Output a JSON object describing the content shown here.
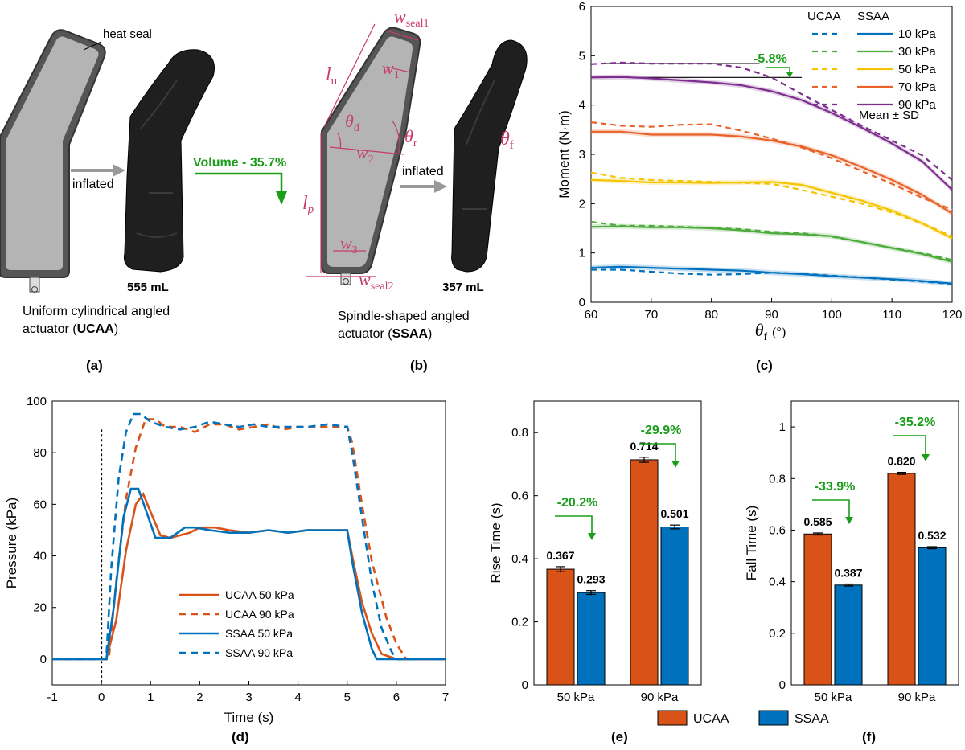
{
  "panels": {
    "a": {
      "tag": "(a)",
      "heat_seal_label": "heat seal",
      "inflated_label": "inflated",
      "volume_label": "555 mL",
      "caption_line1": "Uniform cylindrical angled",
      "caption_line2_pre": "actuator (",
      "caption_line2_bold": "UCAA",
      "caption_line2_post": ")"
    },
    "b": {
      "tag": "(b)",
      "volume_change": "Volume - 35.7%",
      "inflated_label": "inflated",
      "volume_label": "357 mL",
      "caption_line1": "Spindle-shaped angled",
      "caption_line2_pre": "actuator (",
      "caption_line2_bold": "SSAA",
      "caption_line2_post": ")",
      "dims": {
        "w_seal1": "w",
        "w_seal1_sub": "seal1",
        "w1": "w",
        "w1_sub": "1",
        "lu": "l",
        "lu_sub": "u",
        "theta_d": "θ",
        "theta_d_sub": "d",
        "theta_r": "θ",
        "theta_r_sub": "r",
        "w2": "w",
        "w2_sub": "2",
        "lp": "l",
        "lp_sub": "p",
        "w3": "w",
        "w3_sub": "3",
        "w_seal2": "w",
        "w_seal2_sub": "seal2",
        "theta_f": "θ",
        "theta_f_sub": "f"
      }
    },
    "c": {
      "tag": "(c)",
      "annotation": "-5.8%",
      "legend_title_ucaa": "UCAA",
      "legend_title_ssaa": "SSAA",
      "legend_note": "Mean ± SD"
    },
    "d": {
      "tag": "(d)"
    },
    "e": {
      "tag": "(e)"
    },
    "f": {
      "tag": "(f)"
    },
    "bottom_legend": {
      "ucaa": "UCAA",
      "ssaa": "SSAA"
    }
  },
  "colors": {
    "ucaa_bar": "#d95319",
    "ssaa_bar": "#0072bd",
    "p10": "#0072bd",
    "p30": "#4daa3c",
    "p50": "#f5c400",
    "p70": "#e8622a",
    "p90": "#7e2f8e",
    "accent_green": "#1a9e1a",
    "dim_pink": "#c83c6a"
  },
  "chart_data": [
    {
      "id": "c",
      "type": "line",
      "xlabel": "θ",
      "xlabel_sub": "f",
      "xlabel_unit": "(°)",
      "ylabel": "Moment (N·m)",
      "xlim": [
        60,
        120
      ],
      "ylim": [
        0,
        6
      ],
      "xticks": [
        60,
        70,
        80,
        90,
        100,
        110,
        120
      ],
      "yticks": [
        0,
        1,
        2,
        3,
        4,
        5,
        6
      ],
      "grid": false,
      "legend_position": "top-right",
      "annotations": [
        {
          "text": "-5.8%"
        }
      ],
      "series": [
        {
          "name": "10 kPa",
          "key": "p10",
          "x": [
            60,
            65,
            70,
            75,
            80,
            85,
            90,
            95,
            100,
            105,
            110,
            115,
            120
          ],
          "ssaa": [
            0.7,
            0.72,
            0.7,
            0.68,
            0.66,
            0.64,
            0.6,
            0.57,
            0.53,
            0.5,
            0.47,
            0.43,
            0.38
          ],
          "ucaa": [
            0.66,
            0.66,
            0.62,
            0.58,
            0.56,
            0.57,
            0.6,
            0.58,
            0.54,
            0.5,
            0.46,
            0.42,
            0.37
          ]
        },
        {
          "name": "30 kPa",
          "key": "p30",
          "x": [
            60,
            65,
            70,
            75,
            80,
            85,
            90,
            95,
            100,
            105,
            110,
            115,
            120
          ],
          "ssaa": [
            1.53,
            1.54,
            1.52,
            1.52,
            1.5,
            1.46,
            1.4,
            1.38,
            1.34,
            1.22,
            1.1,
            0.98,
            0.82
          ],
          "ucaa": [
            1.63,
            1.55,
            1.55,
            1.53,
            1.51,
            1.48,
            1.43,
            1.4,
            1.33,
            1.22,
            1.1,
            1.0,
            0.86
          ]
        },
        {
          "name": "50 kPa",
          "key": "p50",
          "x": [
            60,
            65,
            70,
            75,
            80,
            85,
            90,
            95,
            100,
            105,
            110,
            115,
            120
          ],
          "ssaa": [
            2.48,
            2.46,
            2.43,
            2.43,
            2.42,
            2.43,
            2.44,
            2.38,
            2.22,
            2.06,
            1.86,
            1.6,
            1.3
          ],
          "ucaa": [
            2.63,
            2.52,
            2.48,
            2.46,
            2.44,
            2.42,
            2.4,
            2.28,
            2.14,
            2.0,
            1.82,
            1.6,
            1.34
          ]
        },
        {
          "name": "70 kPa",
          "key": "p70",
          "x": [
            60,
            65,
            70,
            75,
            80,
            85,
            90,
            95,
            100,
            105,
            110,
            115,
            120
          ],
          "ssaa": [
            3.46,
            3.46,
            3.4,
            3.4,
            3.4,
            3.36,
            3.28,
            3.16,
            2.98,
            2.74,
            2.48,
            2.18,
            1.8
          ],
          "ucaa": [
            3.65,
            3.58,
            3.56,
            3.6,
            3.61,
            3.48,
            3.32,
            3.14,
            2.92,
            2.66,
            2.4,
            2.12,
            1.88
          ]
        },
        {
          "name": "90 kPa",
          "key": "p90",
          "x": [
            60,
            65,
            70,
            75,
            80,
            85,
            90,
            95,
            100,
            105,
            110,
            115,
            120
          ],
          "ssaa": [
            4.56,
            4.57,
            4.54,
            4.5,
            4.46,
            4.4,
            4.28,
            4.1,
            3.84,
            3.54,
            3.22,
            2.86,
            2.28
          ],
          "ucaa": [
            4.83,
            4.86,
            4.84,
            4.84,
            4.84,
            4.76,
            4.56,
            4.22,
            3.9,
            3.58,
            3.28,
            2.98,
            2.48
          ]
        }
      ],
      "ref_lines": [
        {
          "y": 4.84,
          "x": [
            62,
            88
          ]
        },
        {
          "y": 4.56,
          "x": [
            62,
            95
          ]
        }
      ]
    },
    {
      "id": "d",
      "type": "line",
      "xlabel": "Time (s)",
      "ylabel": "Pressure (kPa)",
      "xlim": [
        -1,
        7
      ],
      "ylim": [
        -10,
        100
      ],
      "xticks": [
        -1,
        0,
        1,
        2,
        3,
        4,
        5,
        6,
        7
      ],
      "yticks": [
        0,
        20,
        40,
        60,
        80,
        100
      ],
      "grid": false,
      "legend_position": "bottom-left",
      "series": [
        {
          "name": "UCAA 50 kPa",
          "key": "ucaa_bar",
          "dash": false,
          "x": [
            -1,
            0.1,
            0.3,
            0.5,
            0.7,
            0.85,
            1.0,
            1.2,
            1.4,
            1.6,
            1.8,
            2.0,
            2.3,
            2.6,
            3.0,
            3.4,
            3.8,
            4.2,
            4.6,
            5.0,
            5.1,
            5.3,
            5.5,
            5.7,
            6.0,
            7
          ],
          "y": [
            0,
            0,
            15,
            42,
            60,
            64,
            57,
            48,
            47,
            48,
            49,
            51,
            51,
            50,
            49,
            50,
            49,
            50,
            50,
            50,
            40,
            22,
            10,
            2,
            0,
            0
          ]
        },
        {
          "name": "UCAA 90 kPa",
          "key": "ucaa_bar",
          "dash": true,
          "x": [
            -1,
            0.15,
            0.3,
            0.5,
            0.7,
            0.9,
            1.1,
            1.3,
            1.6,
            1.9,
            2.2,
            2.5,
            2.8,
            3.1,
            3.4,
            3.7,
            4.0,
            4.4,
            4.8,
            5.0,
            5.1,
            5.3,
            5.5,
            5.8,
            6.0,
            6.2,
            7
          ],
          "y": [
            0,
            0,
            30,
            62,
            82,
            93,
            93,
            90,
            90,
            88,
            91,
            91,
            89,
            90,
            91,
            89,
            90,
            90,
            90,
            90,
            84,
            60,
            38,
            16,
            6,
            0,
            0
          ]
        },
        {
          "name": "SSAA 50 kPa",
          "key": "ssaa_bar",
          "dash": false,
          "x": [
            -1,
            0.1,
            0.25,
            0.45,
            0.6,
            0.75,
            0.9,
            1.1,
            1.4,
            1.7,
            1.9,
            2.2,
            2.6,
            3.0,
            3.4,
            3.8,
            4.2,
            4.6,
            5.0,
            5.1,
            5.3,
            5.5,
            5.6,
            5.7,
            7
          ],
          "y": [
            0,
            0,
            20,
            55,
            66,
            66,
            58,
            47,
            47,
            51,
            51,
            50,
            49,
            49,
            50,
            49,
            50,
            50,
            50,
            38,
            18,
            4,
            0,
            0,
            0
          ]
        },
        {
          "name": "SSAA 90 kPa",
          "key": "ssaa_bar",
          "dash": true,
          "x": [
            -1,
            0.1,
            0.2,
            0.35,
            0.5,
            0.65,
            0.8,
            1.0,
            1.3,
            1.6,
            1.9,
            2.2,
            2.5,
            2.8,
            3.1,
            3.4,
            3.8,
            4.2,
            4.6,
            5.0,
            5.1,
            5.3,
            5.5,
            5.7,
            5.9,
            6.0,
            7
          ],
          "y": [
            0,
            0,
            35,
            70,
            88,
            95,
            95,
            92,
            90,
            89,
            90,
            92,
            91,
            90,
            91,
            90,
            90,
            90,
            91,
            90,
            80,
            55,
            30,
            12,
            3,
            0,
            0
          ]
        }
      ],
      "vline": {
        "x": 0
      }
    },
    {
      "id": "e",
      "type": "bar",
      "ylabel": "Rise Time (s)",
      "categories": [
        "50 kPa",
        "90 kPa"
      ],
      "ylim": [
        0,
        0.9
      ],
      "yticks": [
        0,
        0.2,
        0.4,
        0.6,
        0.8
      ],
      "series": [
        {
          "name": "UCAA",
          "key": "ucaa_bar",
          "values": [
            0.367,
            0.714
          ],
          "err": [
            0.008,
            0.008
          ]
        },
        {
          "name": "SSAA",
          "key": "ssaa_bar",
          "values": [
            0.293,
            0.501
          ],
          "err": [
            0.006,
            0.006
          ]
        }
      ],
      "value_labels": [
        [
          "0.367",
          "0.714"
        ],
        [
          "0.293",
          "0.501"
        ]
      ],
      "annotations": [
        "-20.2%",
        "-29.9%"
      ]
    },
    {
      "id": "f",
      "type": "bar",
      "ylabel": "Fall Time (s)",
      "categories": [
        "50 kPa",
        "90 kPa"
      ],
      "ylim": [
        0,
        1.1
      ],
      "yticks": [
        0,
        0.2,
        0.4,
        0.6,
        0.8,
        1
      ],
      "series": [
        {
          "name": "UCAA",
          "key": "ucaa_bar",
          "values": [
            0.585,
            0.82
          ],
          "err": [
            0.004,
            0.004
          ]
        },
        {
          "name": "SSAA",
          "key": "ssaa_bar",
          "values": [
            0.387,
            0.532
          ],
          "err": [
            0.004,
            0.004
          ]
        }
      ],
      "value_labels": [
        [
          "0.585",
          "0.820"
        ],
        [
          "0.387",
          "0.532"
        ]
      ],
      "annotations": [
        "-33.9%",
        "-35.2%"
      ]
    }
  ]
}
